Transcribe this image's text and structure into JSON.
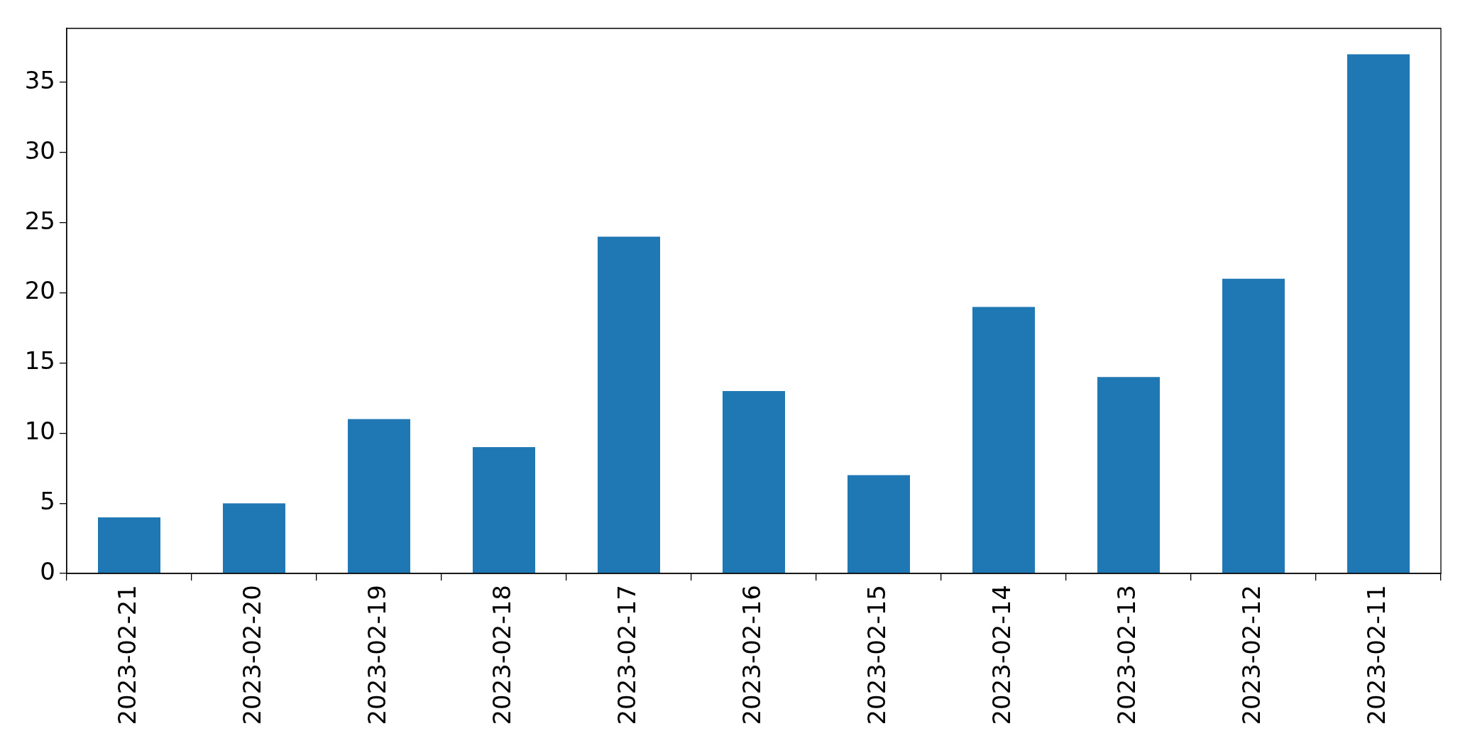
{
  "chart_data": {
    "type": "bar",
    "categories": [
      "2023-02-21",
      "2023-02-20",
      "2023-02-19",
      "2023-02-18",
      "2023-02-17",
      "2023-02-16",
      "2023-02-15",
      "2023-02-14",
      "2023-02-13",
      "2023-02-12",
      "2023-02-11"
    ],
    "values": [
      4,
      5,
      11,
      9,
      24,
      13,
      7,
      19,
      14,
      21,
      37
    ],
    "color": "#1f77b4",
    "ylim": [
      0,
      38.85
    ],
    "yticks": [
      0,
      5,
      10,
      15,
      20,
      25,
      30,
      35
    ]
  }
}
